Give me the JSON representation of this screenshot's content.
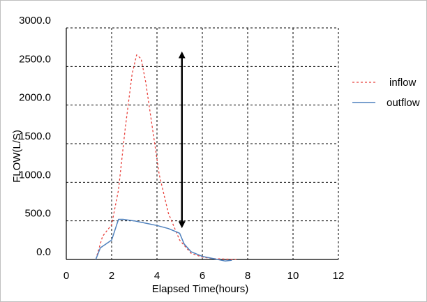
{
  "chart_data": {
    "type": "line",
    "title": "",
    "xlabel": "Elapsed Time(hours)",
    "ylabel": "FLOW(L/S)",
    "xlim": [
      0,
      12
    ],
    "ylim": [
      0,
      3000
    ],
    "x_ticks": [
      "0",
      "2",
      "4",
      "6",
      "8",
      "10",
      "12"
    ],
    "y_ticks": [
      "0.0",
      "500.0",
      "1000.0",
      "1500.0",
      "2000.0",
      "2500.0",
      "3000.0"
    ],
    "grid": true,
    "legend_position": "right",
    "series": [
      {
        "name": "inflow",
        "style": "dashed",
        "color": "#e8413c",
        "x": [
          1.3,
          1.6,
          2.0,
          2.3,
          2.6,
          2.9,
          3.1,
          3.3,
          3.5,
          3.8,
          4.1,
          4.5,
          5.0,
          5.5,
          6.0,
          6.5,
          7.0,
          7.5
        ],
        "y": [
          0,
          300,
          450,
          900,
          1700,
          2400,
          2650,
          2600,
          2300,
          1700,
          1100,
          600,
          250,
          80,
          30,
          10,
          5,
          0
        ]
      },
      {
        "name": "outflow",
        "style": "solid",
        "color": "#4f81bd",
        "x": [
          1.3,
          1.5,
          2.0,
          2.3,
          2.5,
          3.0,
          3.5,
          4.0,
          4.5,
          5.0,
          5.2,
          5.5,
          6.0,
          6.5,
          7.0,
          7.3
        ],
        "y": [
          0,
          150,
          250,
          520,
          520,
          500,
          470,
          440,
          400,
          340,
          200,
          100,
          40,
          10,
          -20,
          -10
        ]
      }
    ],
    "annotation": {
      "type": "double-arrow",
      "x": 5.1,
      "y_from": 450,
      "y_to": 2650
    }
  }
}
